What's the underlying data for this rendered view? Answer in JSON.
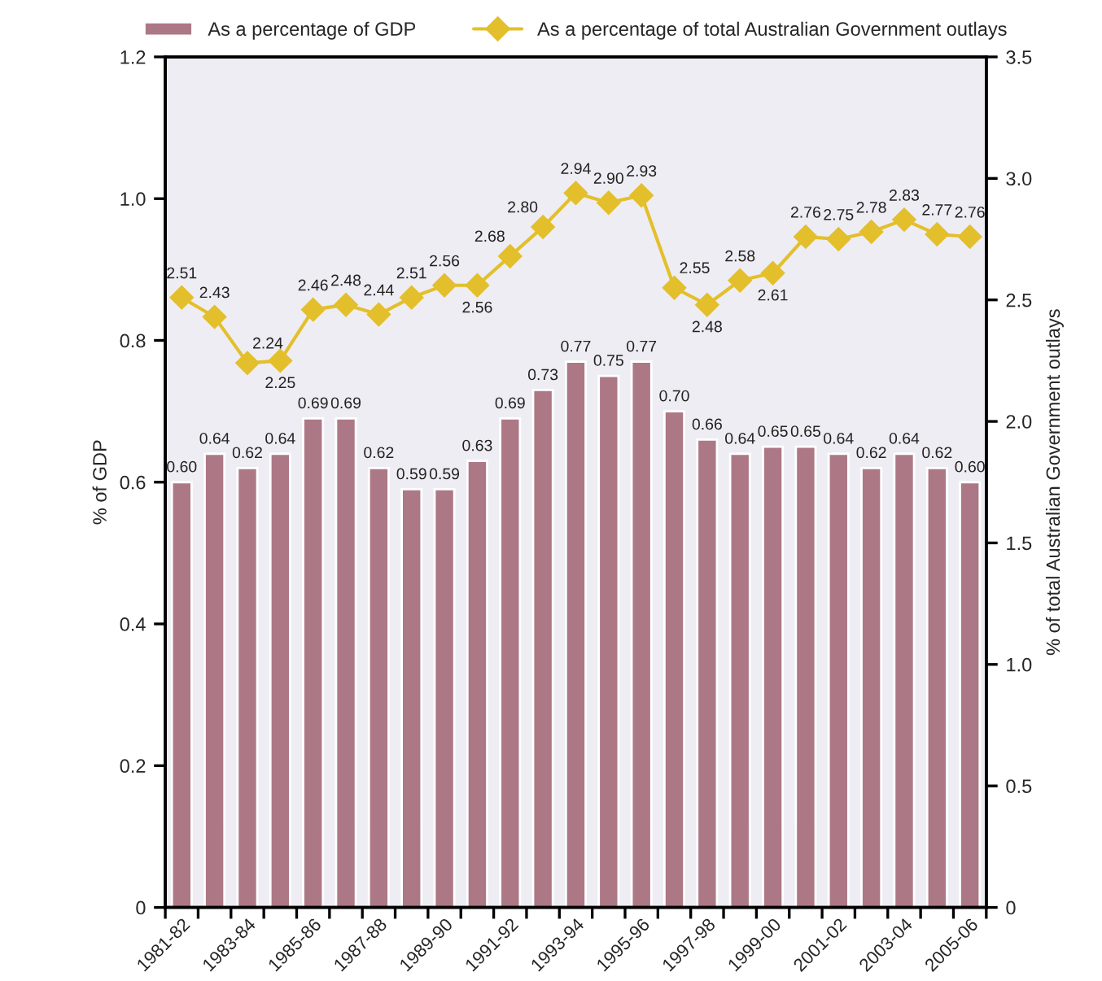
{
  "chart_data": {
    "type": "bar",
    "categories": [
      "1981-82",
      null,
      "1983-84",
      null,
      "1985-86",
      null,
      "1987-88",
      null,
      "1989-90",
      null,
      "1991-92",
      null,
      "1993-94",
      null,
      "1995-96",
      null,
      "1997-98",
      null,
      "1999-00",
      null,
      "2001-02",
      null,
      "2003-04",
      null,
      "2005-06"
    ],
    "ylabel": "% of GDP",
    "y2label": "% of total Australian Government outlays",
    "ylim": [
      0,
      1.2
    ],
    "yticks": [
      0,
      0.2,
      0.4,
      0.6,
      0.8,
      {
        "value": 1,
        "label": "1.0"
      },
      1.2
    ],
    "y2lim": [
      0,
      3.5
    ],
    "y2ticks": [
      0,
      0.5,
      {
        "value": 1,
        "label": "1.0"
      },
      1.5,
      {
        "value": 2,
        "label": "2.0"
      },
      2.5,
      {
        "value": 3,
        "label": "3.0"
      },
      3.5
    ],
    "series": [
      {
        "name": "As a percentage of GDP",
        "color": "#ad7886",
        "values": [
          0.6,
          0.64,
          0.62,
          0.64,
          0.69,
          0.69,
          0.62,
          0.59,
          0.59,
          0.63,
          0.69,
          0.73,
          0.77,
          0.75,
          0.77,
          0.7,
          0.66,
          0.64,
          0.65,
          0.65,
          0.64,
          0.62,
          0.64,
          0.62,
          0.6
        ],
        "value_labels": [
          "0.60",
          "0.64",
          "0.62",
          "0.64",
          "0.69",
          "0.69",
          "0.62",
          "0.59",
          "0.59",
          "0.63",
          "0.69",
          "0.73",
          "0.77",
          "0.75",
          "0.77",
          "0.70",
          "0.66",
          "0.64",
          "0.65",
          "0.65",
          "0.64",
          "0.62",
          "0.64",
          "0.62",
          "0.60"
        ]
      },
      {
        "name": "As a percentage of total Australian Government outlays",
        "type": "line",
        "axis": "y2",
        "marker": "diamond",
        "color": "#e3bf2c",
        "values": [
          2.51,
          2.43,
          2.24,
          2.25,
          2.46,
          2.48,
          2.44,
          2.51,
          2.56,
          2.56,
          2.68,
          2.8,
          2.94,
          2.9,
          2.93,
          2.55,
          2.48,
          2.58,
          2.61,
          2.76,
          2.75,
          2.78,
          2.83,
          2.77,
          2.76
        ],
        "value_labels": [
          "2.51",
          "2.43",
          "2.24",
          "2.25",
          "2.46",
          "2.48",
          "2.44",
          "2.51",
          "2.56",
          "2.56",
          "2.68",
          "2.80",
          "2.94",
          "2.90",
          "2.93",
          "2.55",
          "2.48",
          "2.58",
          "2.61",
          "2.76",
          "2.75",
          "2.78",
          "2.83",
          "2.77",
          "2.76"
        ]
      }
    ],
    "legend": "top",
    "grid": false
  }
}
